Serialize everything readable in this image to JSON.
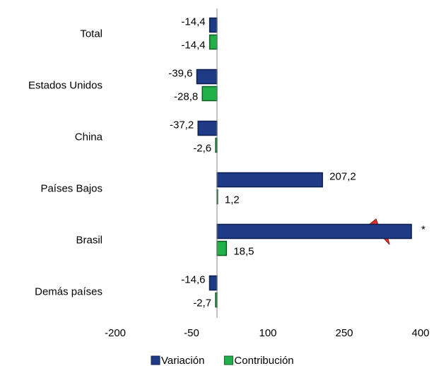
{
  "chart_data": {
    "type": "bar",
    "orientation": "horizontal",
    "categories": [
      "Total",
      "Estados Unidos",
      "China",
      "Países Bajos",
      "Brasil",
      "Demás países"
    ],
    "series": [
      {
        "name": "Variación",
        "color": "#1f3a86",
        "values": [
          -14.4,
          -39.6,
          -37.2,
          207.2,
          382,
          -14.6
        ],
        "value_labels": [
          "-14,4",
          "-39,6",
          "-37,2",
          "207,2",
          null,
          "-14,6"
        ]
      },
      {
        "name": "Contribución",
        "color": "#22b04b",
        "values": [
          -14.4,
          -28.8,
          -2.6,
          1.2,
          18.5,
          -2.7
        ],
        "value_labels": [
          "-14,4",
          "-28,8",
          "-2,6",
          "1,2",
          "18,5",
          "-2,7"
        ]
      }
    ],
    "annotations": [
      "*"
    ],
    "xlim": [
      -200,
      400
    ],
    "xticks": [
      -200,
      -50,
      100,
      250,
      400
    ],
    "legend": "bottom"
  }
}
